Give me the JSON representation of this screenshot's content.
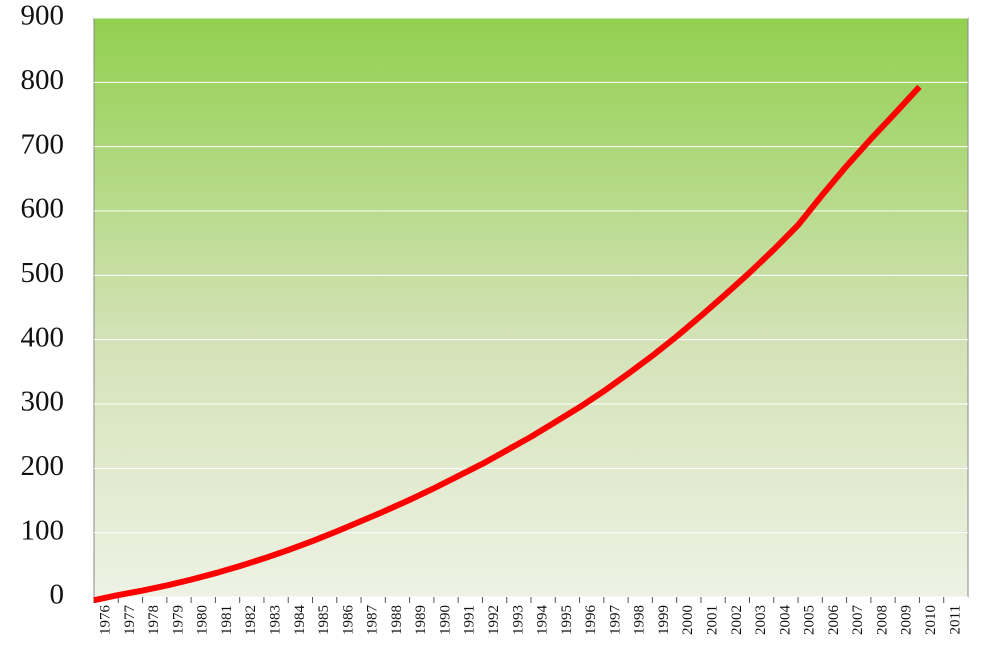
{
  "chart_data": {
    "type": "line",
    "categories": [
      "1976",
      "1977",
      "1978",
      "1979",
      "1980",
      "1981",
      "1982",
      "1983",
      "1984",
      "1985",
      "1986",
      "1987",
      "1988",
      "1989",
      "1990",
      "1991",
      "1992",
      "1993",
      "1994",
      "1995",
      "1996",
      "1997",
      "1998",
      "1999",
      "2000",
      "2001",
      "2002",
      "2003",
      "2004",
      "2005",
      "2006",
      "2007",
      "2008",
      "2009",
      "2010",
      "2011"
    ],
    "series": [
      {
        "color": "#ff0000",
        "values": [
          -5,
          3,
          10,
          18,
          27,
          37,
          48,
          60,
          73,
          87,
          102,
          118,
          134,
          151,
          169,
          188,
          207,
          228,
          249,
          272,
          295,
          320,
          347,
          375,
          405,
          437,
          470,
          504,
          540,
          578,
          625,
          670,
          712,
          752,
          793,
          null
        ]
      }
    ],
    "ylim": [
      0,
      900
    ],
    "yticks": [
      0,
      100,
      200,
      300,
      400,
      500,
      600,
      700,
      800,
      900
    ],
    "grid": true
  }
}
